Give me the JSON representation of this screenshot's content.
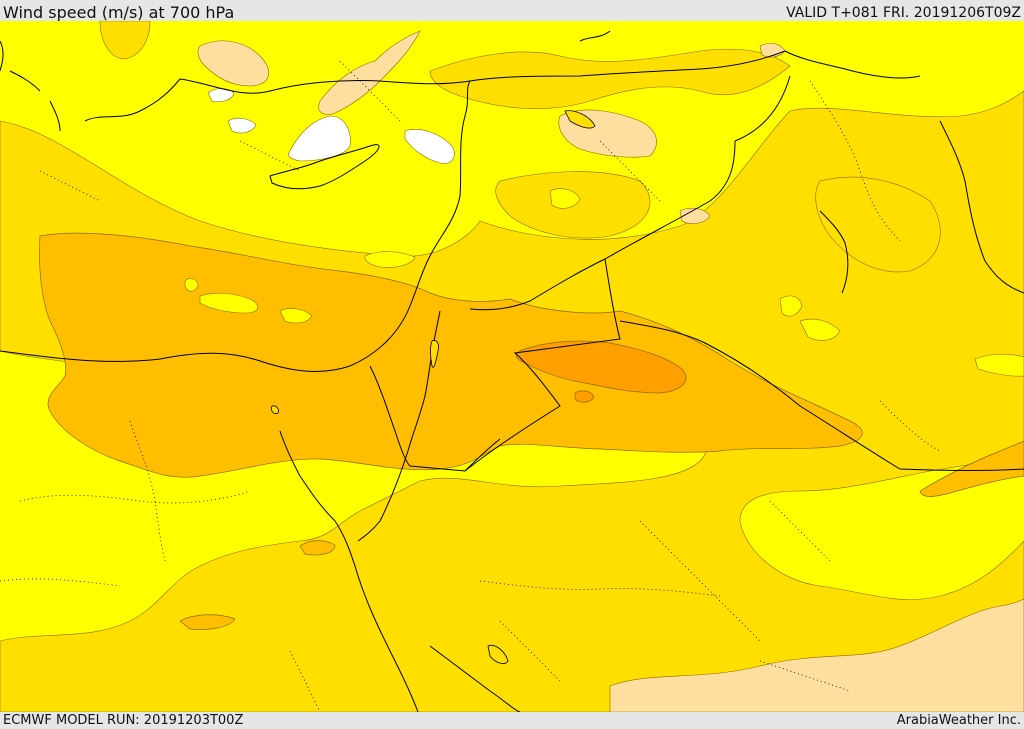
{
  "header": {
    "title": "Wind speed (m/s) at 700 hPa",
    "valid": "VALID T+081 FRI. 20191206T09Z"
  },
  "footer": {
    "model_run": "ECMWF MODEL RUN: 20191203T00Z",
    "credit": "ArabiaWeather Inc."
  },
  "map": {
    "region": "Eastern Mediterranean and Middle East",
    "colors": {
      "calm": "#ffffff",
      "light": "#ffdfa0",
      "low": "#ffff00",
      "moderate": "#ffdf00",
      "fresh": "#ffbf00",
      "strong": "#ff9f00"
    }
  }
}
